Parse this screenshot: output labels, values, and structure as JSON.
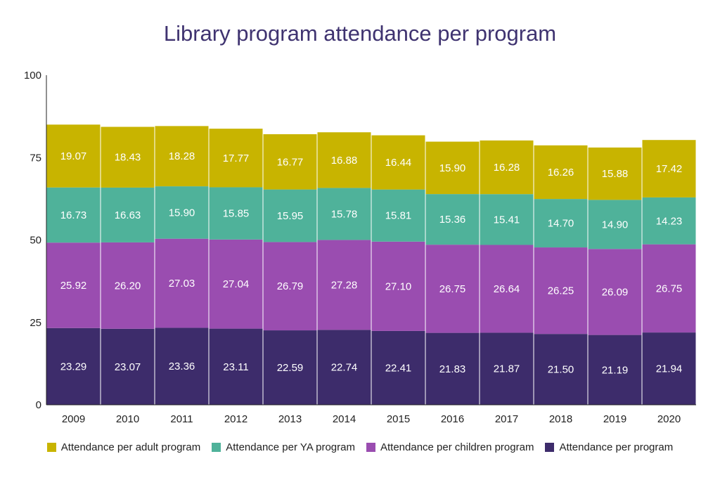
{
  "chart_data": {
    "type": "bar",
    "stacked": true,
    "title": "Library program attendance per program",
    "xlabel": "",
    "ylabel": "",
    "ylim": [
      0,
      100
    ],
    "yticks": [
      "0",
      "25",
      "50",
      "75",
      "100"
    ],
    "grid": false,
    "legend_position": "bottom",
    "categories": [
      "2009",
      "2010",
      "2011",
      "2012",
      "2013",
      "2014",
      "2015",
      "2016",
      "2017",
      "2018",
      "2019",
      "2020"
    ],
    "series": [
      {
        "name": "Attendance per program",
        "color": "#3d2c6b",
        "values": [
          23.29,
          23.07,
          23.36,
          23.11,
          22.59,
          22.74,
          22.41,
          21.83,
          21.87,
          21.5,
          21.19,
          21.94
        ]
      },
      {
        "name": "Attendance per children program",
        "color": "#9a4db0",
        "values": [
          25.92,
          26.2,
          27.03,
          27.04,
          26.79,
          27.28,
          27.1,
          26.75,
          26.64,
          26.25,
          26.09,
          26.75
        ]
      },
      {
        "name": "Attendance per YA program",
        "color": "#4fb29a",
        "values": [
          16.73,
          16.63,
          15.9,
          15.85,
          15.95,
          15.78,
          15.81,
          15.36,
          15.41,
          14.7,
          14.9,
          14.23
        ]
      },
      {
        "name": "Attendance per adult program",
        "color": "#c8b400",
        "values": [
          19.07,
          18.43,
          18.28,
          17.77,
          16.77,
          16.88,
          16.44,
          15.9,
          16.28,
          16.26,
          15.88,
          17.42
        ]
      }
    ],
    "legend_order": [
      3,
      2,
      1,
      0
    ]
  }
}
